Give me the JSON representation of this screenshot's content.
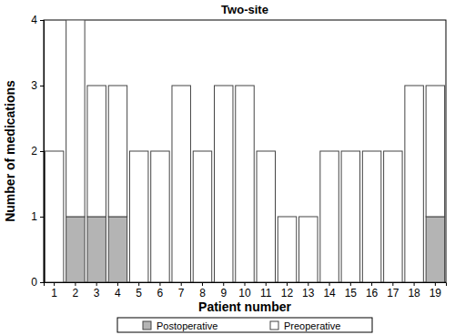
{
  "chart_data": {
    "type": "bar",
    "title": "Two-site",
    "stacked": true,
    "legend": "bottom",
    "grid": false,
    "x_label": "Patient number",
    "y_label": "Number of medications",
    "categories": [
      1,
      2,
      3,
      4,
      5,
      6,
      7,
      8,
      9,
      10,
      11,
      12,
      13,
      14,
      15,
      16,
      17,
      18,
      19
    ],
    "series": [
      {
        "name": "Postoperative",
        "color": "#b4b4b4",
        "values": [
          0,
          1,
          1,
          1,
          0,
          0,
          0,
          0,
          0,
          0,
          0,
          0,
          0,
          0,
          0,
          0,
          0,
          0,
          1
        ]
      },
      {
        "name": "Preoperative",
        "color": "#ffffff",
        "values": [
          2,
          3,
          2,
          2,
          2,
          2,
          3,
          2,
          3,
          3,
          2,
          1,
          1,
          2,
          2,
          2,
          2,
          3,
          2
        ]
      }
    ],
    "ylim": [
      0,
      4
    ],
    "yticks": [
      0,
      1,
      2,
      3,
      4
    ]
  }
}
